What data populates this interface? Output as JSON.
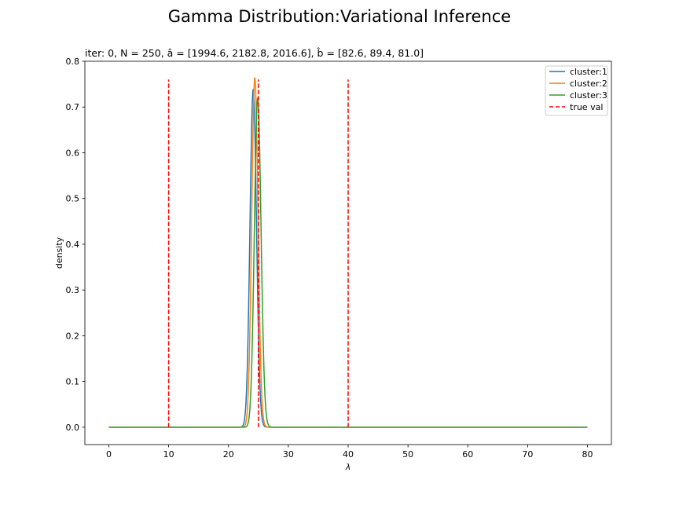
{
  "chart_data": {
    "type": "line",
    "suptitle": "Gamma Distribution:Variational Inference",
    "title": "iter: 0, N = 250, â = [1994.6, 2182.8, 2016.6], b̂ = [82.6, 89.4, 81.0]",
    "xlabel": "λ",
    "ylabel": "density",
    "xlim": [
      -4,
      84
    ],
    "ylim": [
      -0.038,
      0.8
    ],
    "xticks": [
      0,
      10,
      20,
      30,
      40,
      50,
      60,
      70,
      80
    ],
    "yticks": [
      0.0,
      0.1,
      0.2,
      0.3,
      0.4,
      0.5,
      0.6,
      0.7,
      0.8
    ],
    "legend_position": "top-right",
    "x_range": [
      0,
      80
    ],
    "series": [
      {
        "name": "cluster:1",
        "kind": "gamma_pdf",
        "shape": 1994.6,
        "rate": 82.6,
        "color": "#1f77b4",
        "style": "solid"
      },
      {
        "name": "cluster:2",
        "kind": "gamma_pdf",
        "shape": 2182.8,
        "rate": 89.4,
        "color": "#ff7f0e",
        "style": "solid"
      },
      {
        "name": "cluster:3",
        "kind": "gamma_pdf",
        "shape": 2016.6,
        "rate": 81.0,
        "color": "#2ca02c",
        "style": "solid"
      }
    ],
    "true_values": {
      "name": "true val",
      "x": [
        10,
        25,
        40
      ],
      "y_range": [
        0,
        0.76
      ],
      "color": "#ff0000",
      "style": "dashed"
    }
  }
}
